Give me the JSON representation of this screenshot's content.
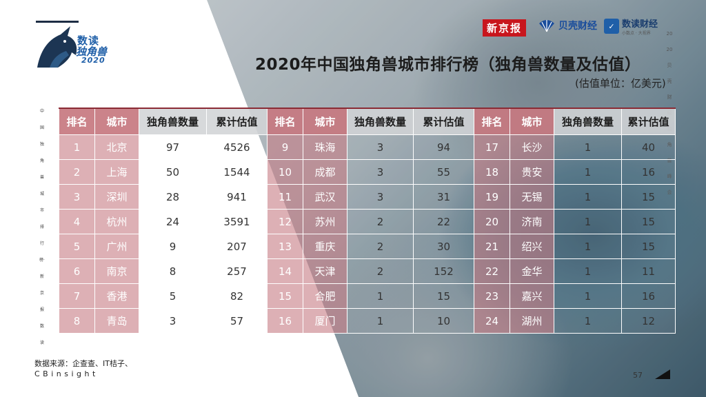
{
  "logo": {
    "line1": "数读",
    "line2": "独角兽",
    "line3": "2020"
  },
  "brands": {
    "xinjingbao": "新京报",
    "beike": "贝壳财经",
    "shudu": "数读财经",
    "shudu_sub": "小数点 · 大视界"
  },
  "title": "2020年中国独角兽城市排行榜（独角兽数量及估值）",
  "unit": "(估值单位：亿美元)",
  "side_left": "中国独角兽城市排行榜·新京报数读",
  "side_right": "2020贝壳财经独角兽峰会",
  "table": {
    "headers": [
      "排名",
      "城市",
      "独角兽数量",
      "累计估值"
    ],
    "rows": [
      [
        "1",
        "北京",
        "97",
        "4526",
        "9",
        "珠海",
        "3",
        "94",
        "17",
        "长沙",
        "1",
        "40"
      ],
      [
        "2",
        "上海",
        "50",
        "1544",
        "10",
        "成都",
        "3",
        "55",
        "18",
        "贵安",
        "1",
        "16"
      ],
      [
        "3",
        "深圳",
        "28",
        "941",
        "11",
        "武汉",
        "3",
        "31",
        "19",
        "无锡",
        "1",
        "15"
      ],
      [
        "4",
        "杭州",
        "24",
        "3591",
        "12",
        "苏州",
        "2",
        "22",
        "20",
        "济南",
        "1",
        "15"
      ],
      [
        "5",
        "广州",
        "9",
        "207",
        "13",
        "重庆",
        "2",
        "30",
        "21",
        "绍兴",
        "1",
        "15"
      ],
      [
        "6",
        "南京",
        "8",
        "257",
        "14",
        "天津",
        "2",
        "152",
        "22",
        "金华",
        "1",
        "11"
      ],
      [
        "7",
        "香港",
        "5",
        "82",
        "15",
        "合肥",
        "1",
        "15",
        "23",
        "嘉兴",
        "1",
        "16"
      ],
      [
        "8",
        "青岛",
        "3",
        "57",
        "16",
        "厦门",
        "1",
        "10",
        "24",
        "湖州",
        "1",
        "12"
      ]
    ]
  },
  "source": {
    "line1": "数据来源：企查查、IT桔子、",
    "line2": "CBinsight"
  },
  "page_number": "57",
  "colors": {
    "accent_pink": "#c77880",
    "accent_red": "#8a2a34",
    "brand_blue": "#1f5fa8"
  }
}
